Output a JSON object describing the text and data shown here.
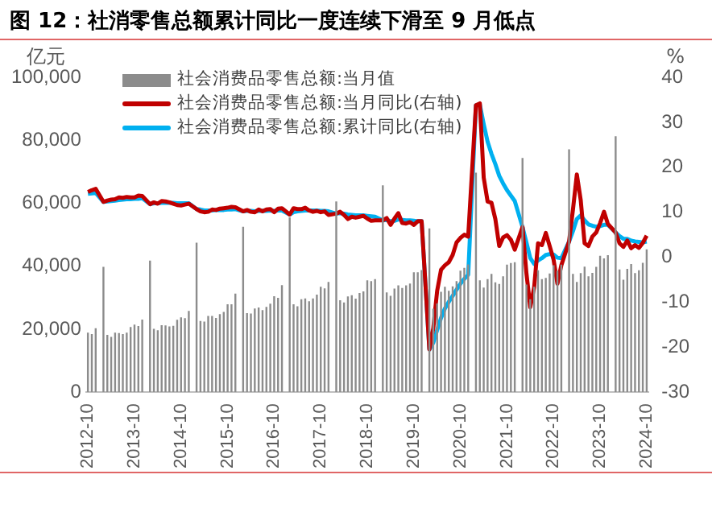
{
  "chart_data": {
    "type": "bar",
    "title": "图 12：社消零售总额累计同比一度连续下滑至 9 月低点",
    "ylabel": "亿元",
    "y2label": "%",
    "categories": [
      "2012-10",
      null,
      null,
      null,
      null,
      null,
      null,
      null,
      null,
      null,
      null,
      null,
      "2013-10",
      null,
      null,
      null,
      null,
      null,
      null,
      null,
      null,
      null,
      null,
      null,
      "2014-10",
      null,
      null,
      null,
      null,
      null,
      null,
      null,
      null,
      null,
      null,
      null,
      "2015-10",
      null,
      null,
      null,
      null,
      null,
      null,
      null,
      null,
      null,
      null,
      null,
      "2016-10",
      null,
      null,
      null,
      null,
      null,
      null,
      null,
      null,
      null,
      null,
      null,
      "2017-10",
      null,
      null,
      null,
      null,
      null,
      null,
      null,
      null,
      null,
      null,
      null,
      "2018-10",
      null,
      null,
      null,
      null,
      null,
      null,
      null,
      null,
      null,
      null,
      null,
      "2019-10",
      null,
      null,
      null,
      null,
      null,
      null,
      null,
      null,
      null,
      null,
      null,
      "2020-10",
      null,
      null,
      null,
      null,
      null,
      null,
      null,
      null,
      null,
      null,
      null,
      "2021-10",
      null,
      null,
      null,
      null,
      null,
      null,
      null,
      null,
      null,
      null,
      null,
      "2022-10",
      null,
      null,
      null,
      null,
      null,
      null,
      null,
      null,
      null,
      null,
      null,
      "2023-10",
      null,
      null,
      null,
      null,
      null,
      null,
      null,
      null,
      null,
      null,
      null,
      "2024-10"
    ],
    "series": [
      {
        "name": "社会消费品零售总额:当月值",
        "color": "#8c8c8c",
        "values": [
          18900,
          18500,
          20300,
          null,
          39800,
          18200,
          17600,
          18900,
          18800,
          18500,
          18900,
          20700,
          21500,
          21000,
          23100,
          null,
          41800,
          20100,
          19700,
          21300,
          21200,
          20900,
          21100,
          23000,
          23800,
          23500,
          25800,
          null,
          47500,
          22600,
          22400,
          24200,
          24200,
          23600,
          24800,
          25500,
          27900,
          27900,
          31300,
          null,
          52500,
          25100,
          25000,
          26600,
          26900,
          26100,
          27100,
          28100,
          30500,
          30000,
          34000,
          null,
          55500,
          27900,
          27300,
          29500,
          29800,
          28900,
          29800,
          31000,
          33500,
          33000,
          35000,
          null,
          60600,
          29200,
          28500,
          30400,
          30800,
          29700,
          31500,
          32000,
          35500,
          35300,
          35900,
          null,
          65700,
          31700,
          30600,
          32900,
          33900,
          33100,
          33900,
          34500,
          38100,
          38100,
          38800,
          null,
          52000,
          26500,
          28200,
          31900,
          33500,
          32200,
          33600,
          35300,
          38600,
          39500,
          40600,
          null,
          69700,
          35500,
          33200,
          35900,
          37600,
          34900,
          34400,
          36800,
          40500,
          41000,
          41300,
          null,
          74400,
          34200,
          29500,
          33500,
          38700,
          35900,
          36300,
          37700,
          40300,
          38600,
          40500,
          null,
          77100,
          37600,
          35000,
          37800,
          39900,
          36800,
          37900,
          39800,
          43300,
          42500,
          43500,
          null,
          81300,
          39000,
          35700,
          39200,
          40700,
          37800,
          38700,
          41100,
          45400
        ]
      },
      {
        "name": "社会消费品零售总额:当月同比(右轴)",
        "type": "line",
        "axis": "y2",
        "color": "#c00000",
        "values": [
          14.5,
          14.9,
          15.2,
          null,
          12.3,
          12.6,
          12.8,
          12.9,
          13.3,
          13.2,
          13.4,
          13.3,
          13.3,
          13.7,
          13.6,
          null,
          11.8,
          12.2,
          11.9,
          12.5,
          12.4,
          12.2,
          11.9,
          11.6,
          11.5,
          11.7,
          11.9,
          null,
          10.7,
          10.2,
          10.0,
          10.1,
          10.6,
          10.5,
          10.8,
          10.9,
          11.0,
          11.2,
          11.1,
          null,
          10.2,
          10.5,
          10.1,
          10.0,
          10.6,
          10.2,
          10.6,
          10.7,
          10.0,
          10.8,
          10.9,
          null,
          9.5,
          10.9,
          10.7,
          10.7,
          11.0,
          10.4,
          10.1,
          10.3,
          10.0,
          10.2,
          9.4,
          null,
          9.7,
          10.1,
          9.4,
          8.5,
          9.0,
          8.8,
          9.0,
          9.2,
          8.6,
          8.1,
          8.2,
          null,
          8.2,
          8.7,
          7.2,
          8.6,
          9.8,
          7.6,
          7.5,
          7.8,
          7.2,
          8.0,
          8.0,
          null,
          -20.5,
          -15.8,
          -7.5,
          -2.8,
          -1.8,
          -1.1,
          0.5,
          3.3,
          4.3,
          5.0,
          4.6,
          null,
          33.8,
          34.2,
          17.7,
          12.4,
          12.1,
          8.5,
          2.5,
          4.4,
          4.9,
          3.9,
          1.7,
          null,
          6.7,
          -3.5,
          -11.1,
          -6.7,
          3.1,
          2.7,
          5.4,
          2.5,
          -0.5,
          -5.9,
          -1.8,
          null,
          3.5,
          10.6,
          18.4,
          12.7,
          3.1,
          2.5,
          4.6,
          5.5,
          7.6,
          10.1,
          7.4,
          null,
          5.5,
          3.1,
          2.3,
          3.7,
          2.0,
          2.7,
          2.1,
          3.2,
          4.8
        ]
      },
      {
        "name": "社会消费品零售总额:累计同比(右轴)",
        "type": "line",
        "axis": "y2",
        "color": "#00b0f0",
        "values": [
          14.1,
          14.2,
          14.3,
          null,
          12.3,
          12.4,
          12.5,
          12.6,
          12.7,
          12.8,
          12.9,
          12.9,
          13.0,
          13.0,
          13.1,
          null,
          11.8,
          12.0,
          12.0,
          12.1,
          12.1,
          12.1,
          12.1,
          12.0,
          12.0,
          12.0,
          12.0,
          null,
          10.7,
          10.6,
          10.4,
          10.4,
          10.4,
          10.5,
          10.5,
          10.5,
          10.6,
          10.6,
          10.7,
          null,
          10.2,
          10.3,
          10.3,
          10.2,
          10.3,
          10.3,
          10.3,
          10.4,
          10.3,
          10.4,
          10.4,
          null,
          9.5,
          10.0,
          10.2,
          10.3,
          10.4,
          10.4,
          10.4,
          10.4,
          10.3,
          10.3,
          10.2,
          null,
          9.7,
          9.8,
          9.7,
          9.5,
          9.4,
          9.3,
          9.3,
          9.3,
          9.2,
          9.1,
          9.0,
          null,
          8.2,
          8.3,
          8.0,
          8.1,
          8.4,
          8.3,
          8.2,
          8.2,
          8.1,
          8.0,
          8.0,
          null,
          -20.5,
          -19.0,
          -16.2,
          -13.5,
          -11.4,
          -9.9,
          -8.6,
          -7.2,
          -5.9,
          -4.8,
          -3.9,
          null,
          33.8,
          33.9,
          29.6,
          25.7,
          23.0,
          20.7,
          18.1,
          16.4,
          14.9,
          13.7,
          12.5,
          null,
          6.7,
          3.3,
          -0.2,
          -1.5,
          -0.7,
          -0.2,
          0.5,
          0.7,
          0.6,
          -0.1,
          -0.2,
          null,
          3.5,
          5.8,
          8.5,
          9.3,
          8.2,
          7.3,
          7.0,
          6.8,
          6.9,
          7.2,
          7.2,
          null,
          5.5,
          4.7,
          4.1,
          4.1,
          3.7,
          3.5,
          3.4,
          3.3,
          3.5
        ]
      }
    ],
    "ylim": [
      0,
      100000
    ],
    "yticks": [
      0,
      {
        "value": 20000,
        "label": "20,000"
      },
      {
        "value": 40000,
        "label": "40,000"
      },
      {
        "value": 60000,
        "label": "60,000"
      },
      {
        "value": 80000,
        "label": "80,000"
      },
      {
        "value": 100000,
        "label": "100,000"
      }
    ],
    "y2lim": [
      -30,
      40
    ],
    "y2ticks": [
      -30,
      -20,
      -10,
      0,
      10,
      20,
      30,
      40
    ],
    "grid": false,
    "legend": "top"
  }
}
